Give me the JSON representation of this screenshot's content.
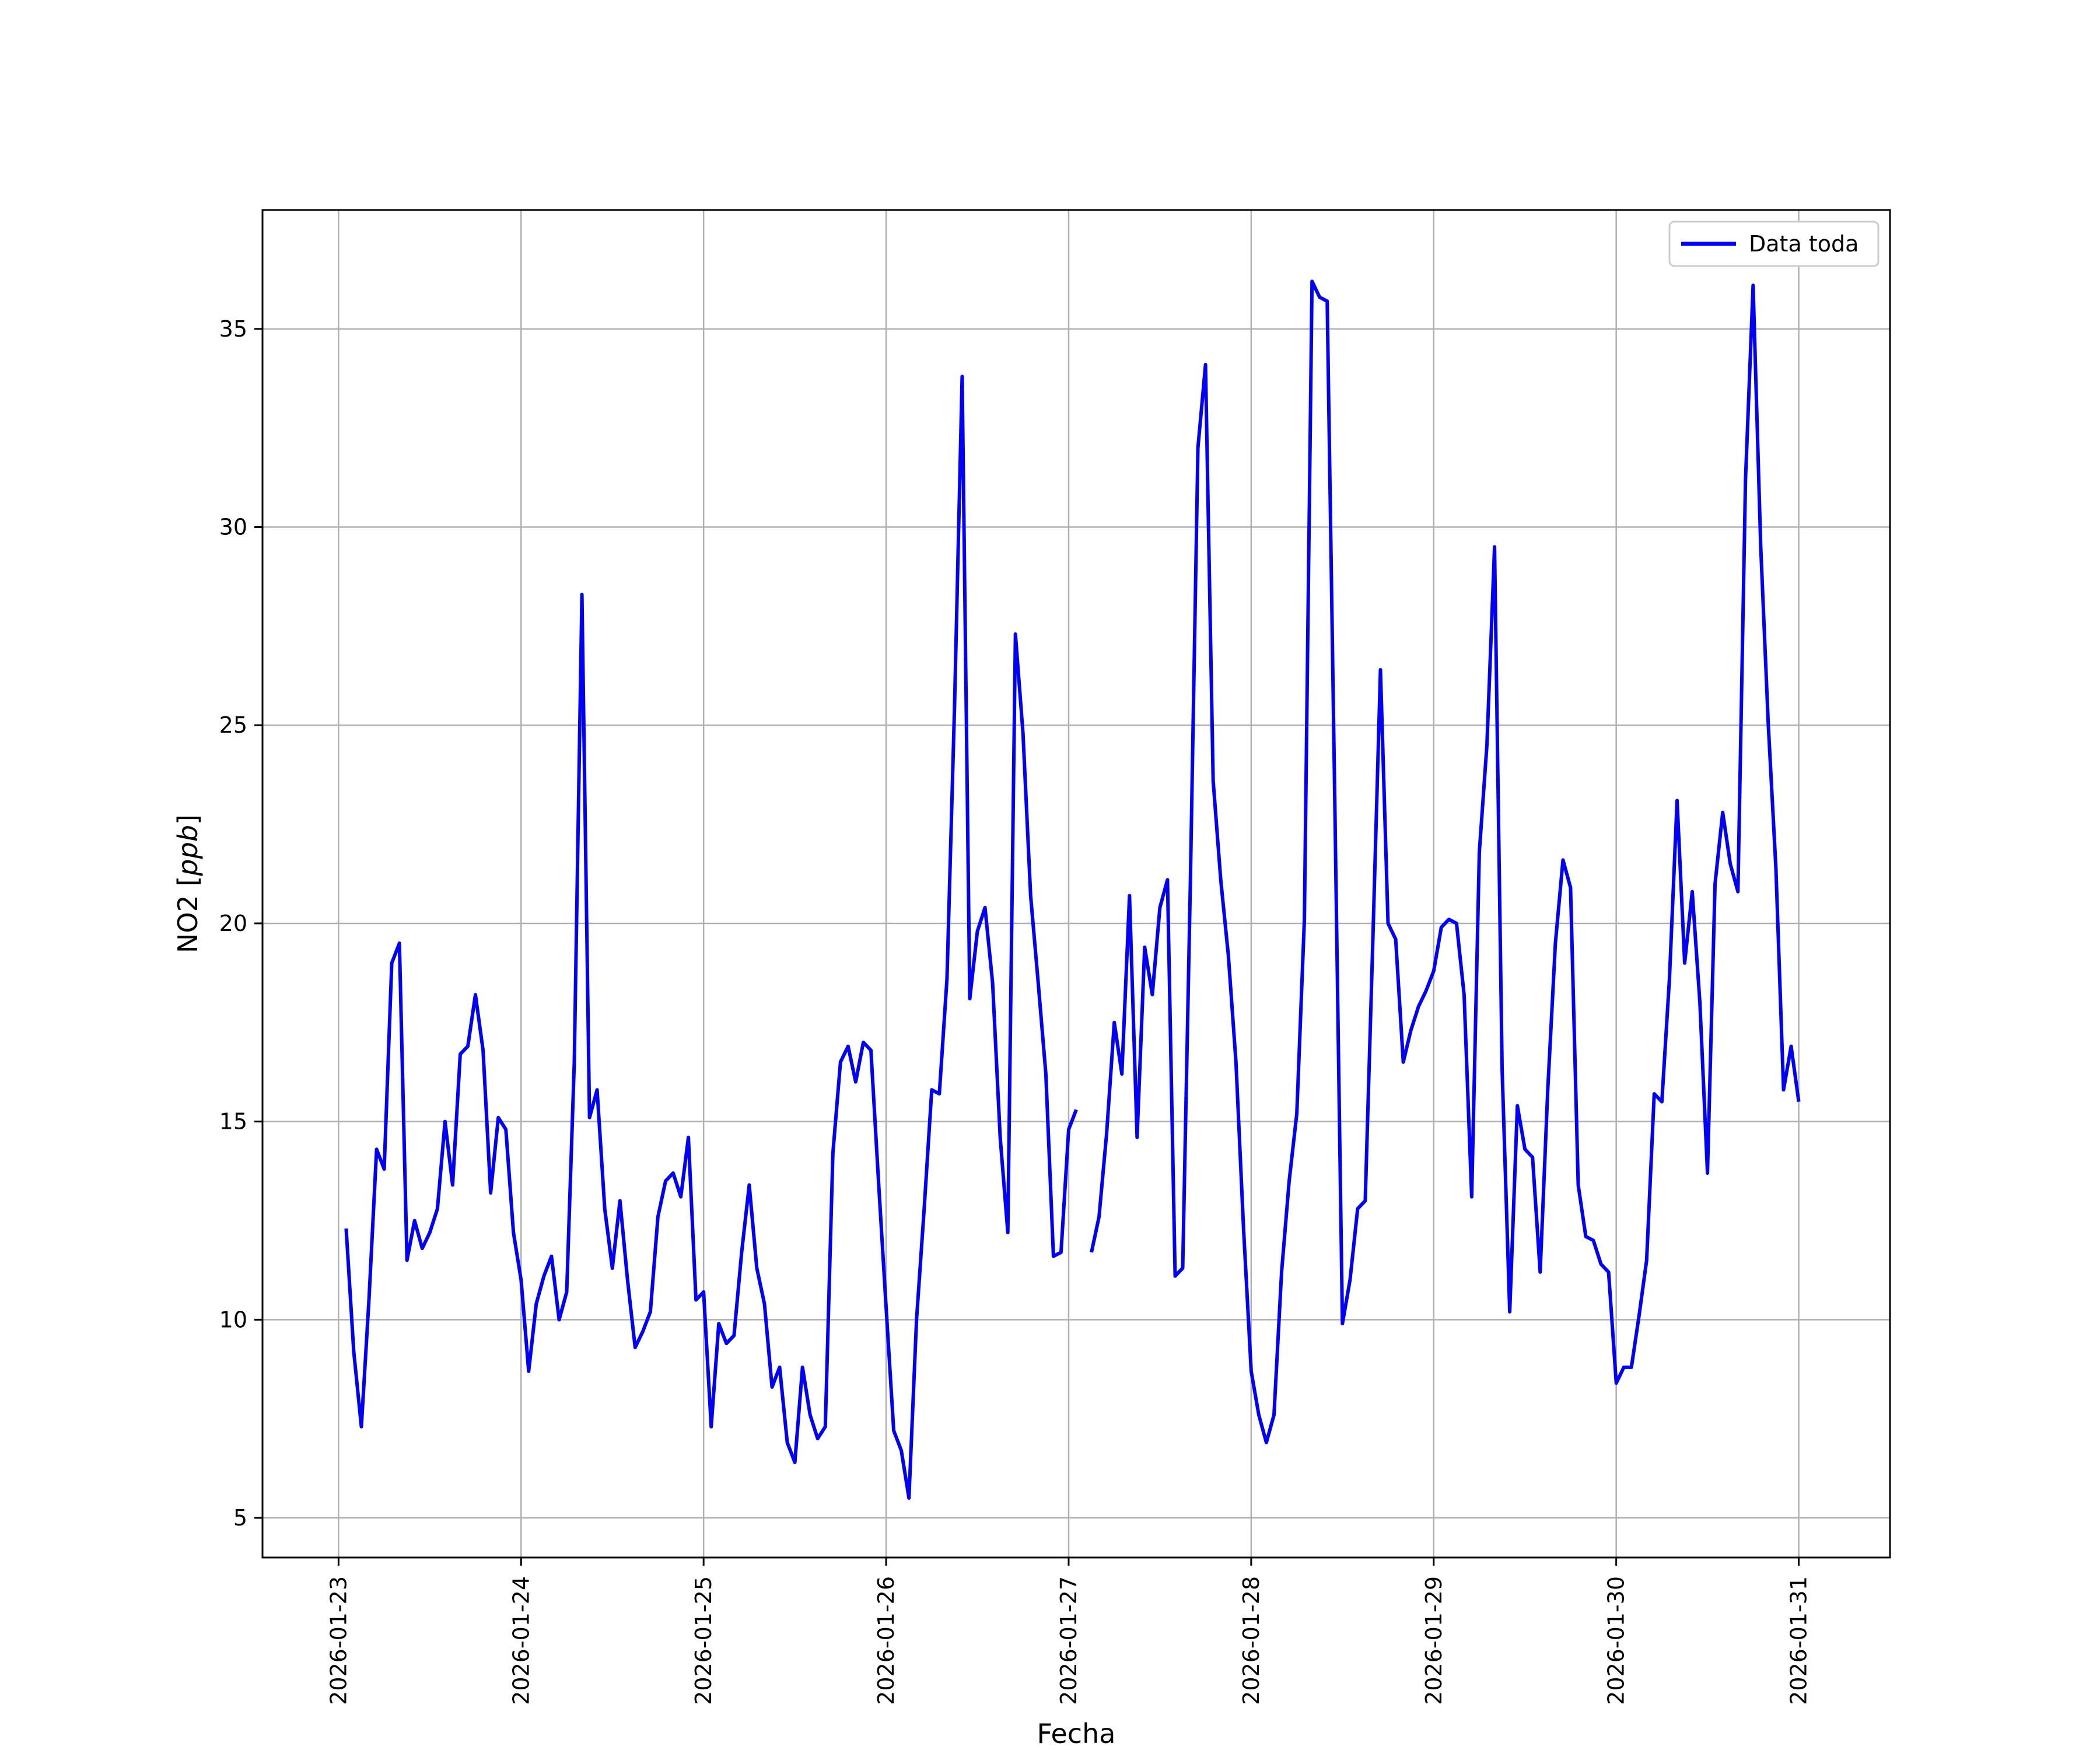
{
  "chart_data": {
    "type": "line",
    "xlabel": "Fecha",
    "ylabel_text": "NO2 [",
    "ylabel_unit": "ppb",
    "ylabel_close": "]",
    "x_start": "2026-01-23",
    "x_step_hours": 1,
    "xlim": [
      "2026-01-22 14:00",
      "2026-01-31 12:00"
    ],
    "ylim": [
      4,
      38
    ],
    "xticks": [
      "2026-01-23",
      "2026-01-24",
      "2026-01-25",
      "2026-01-26",
      "2026-01-27",
      "2026-01-28",
      "2026-01-29",
      "2026-01-30",
      "2026-01-31"
    ],
    "yticks": [
      5,
      10,
      15,
      20,
      25,
      30,
      35
    ],
    "grid": true,
    "legend_position": "top-right",
    "series": [
      {
        "name": "Data toda",
        "color": "#0000ff",
        "points": [
          [
            "2026-01-23 01:00",
            12.3
          ],
          [
            "2026-01-23 02:00",
            9.2
          ],
          [
            "2026-01-23 03:00",
            7.3
          ],
          [
            "2026-01-23 04:00",
            10.5
          ],
          [
            "2026-01-23 05:00",
            14.3
          ],
          [
            "2026-01-23 06:00",
            13.8
          ],
          [
            "2026-01-23 07:00",
            19.0
          ],
          [
            "2026-01-23 08:00",
            19.5
          ],
          [
            "2026-01-23 09:00",
            11.5
          ],
          [
            "2026-01-23 10:00",
            12.5
          ],
          [
            "2026-01-23 11:00",
            11.8
          ],
          [
            "2026-01-23 12:00",
            12.2
          ],
          [
            "2026-01-23 13:00",
            12.8
          ],
          [
            "2026-01-23 14:00",
            15.0
          ],
          [
            "2026-01-23 15:00",
            13.4
          ],
          [
            "2026-01-23 16:00",
            16.7
          ],
          [
            "2026-01-23 17:00",
            16.9
          ],
          [
            "2026-01-23 18:00",
            18.2
          ],
          [
            "2026-01-23 19:00",
            16.8
          ],
          [
            "2026-01-23 20:00",
            13.2
          ],
          [
            "2026-01-23 21:00",
            15.1
          ],
          [
            "2026-01-23 22:00",
            14.8
          ],
          [
            "2026-01-23 23:00",
            12.2
          ],
          [
            "2026-01-24 00:00",
            11.0
          ],
          [
            "2026-01-24 01:00",
            8.7
          ],
          [
            "2026-01-24 02:00",
            10.4
          ],
          [
            "2026-01-24 03:00",
            11.1
          ],
          [
            "2026-01-24 04:00",
            11.6
          ],
          [
            "2026-01-24 05:00",
            10.0
          ],
          [
            "2026-01-24 06:00",
            10.7
          ],
          [
            "2026-01-24 07:00",
            16.5
          ],
          [
            "2026-01-24 08:00",
            28.3
          ],
          [
            "2026-01-24 09:00",
            15.1
          ],
          [
            "2026-01-24 10:00",
            15.8
          ],
          [
            "2026-01-24 11:00",
            12.8
          ],
          [
            "2026-01-24 12:00",
            11.3
          ],
          [
            "2026-01-24 13:00",
            13.0
          ],
          [
            "2026-01-24 14:00",
            11.0
          ],
          [
            "2026-01-24 15:00",
            9.3
          ],
          [
            "2026-01-24 16:00",
            9.7
          ],
          [
            "2026-01-24 17:00",
            10.2
          ],
          [
            "2026-01-24 18:00",
            12.6
          ],
          [
            "2026-01-24 19:00",
            13.5
          ],
          [
            "2026-01-24 20:00",
            13.7
          ],
          [
            "2026-01-24 21:00",
            13.1
          ],
          [
            "2026-01-24 22:00",
            14.6
          ],
          [
            "2026-01-24 23:00",
            10.5
          ],
          [
            "2026-01-25 00:00",
            10.7
          ],
          [
            "2026-01-25 01:00",
            7.3
          ],
          [
            "2026-01-25 02:00",
            9.9
          ],
          [
            "2026-01-25 03:00",
            9.4
          ],
          [
            "2026-01-25 04:00",
            9.6
          ],
          [
            "2026-01-25 05:00",
            11.7
          ],
          [
            "2026-01-25 06:00",
            13.4
          ],
          [
            "2026-01-25 07:00",
            11.3
          ],
          [
            "2026-01-25 08:00",
            10.4
          ],
          [
            "2026-01-25 09:00",
            8.3
          ],
          [
            "2026-01-25 10:00",
            8.8
          ],
          [
            "2026-01-25 11:00",
            6.9
          ],
          [
            "2026-01-25 12:00",
            6.4
          ],
          [
            "2026-01-25 13:00",
            8.8
          ],
          [
            "2026-01-25 14:00",
            7.6
          ],
          [
            "2026-01-25 15:00",
            7.0
          ],
          [
            "2026-01-25 16:00",
            7.3
          ],
          [
            "2026-01-25 17:00",
            14.2
          ],
          [
            "2026-01-25 18:00",
            16.5
          ],
          [
            "2026-01-25 19:00",
            16.9
          ],
          [
            "2026-01-25 20:00",
            16.0
          ],
          [
            "2026-01-25 21:00",
            17.0
          ],
          [
            "2026-01-25 22:00",
            16.8
          ],
          [
            "2026-01-25 23:00",
            13.5
          ],
          [
            "2026-01-26 00:00",
            10.3
          ],
          [
            "2026-01-26 01:00",
            7.2
          ],
          [
            "2026-01-26 02:00",
            6.7
          ],
          [
            "2026-01-26 03:00",
            5.5
          ],
          [
            "2026-01-26 04:00",
            10.0
          ],
          [
            "2026-01-26 05:00",
            12.8
          ],
          [
            "2026-01-26 06:00",
            15.8
          ],
          [
            "2026-01-26 07:00",
            15.7
          ],
          [
            "2026-01-26 08:00",
            18.6
          ],
          [
            "2026-01-26 09:00",
            25.5
          ],
          [
            "2026-01-26 10:00",
            33.8
          ],
          [
            "2026-01-26 11:00",
            18.1
          ],
          [
            "2026-01-26 12:00",
            19.8
          ],
          [
            "2026-01-26 13:00",
            20.4
          ],
          [
            "2026-01-26 14:00",
            18.5
          ],
          [
            "2026-01-26 15:00",
            14.6
          ],
          [
            "2026-01-26 16:00",
            12.2
          ],
          [
            "2026-01-26 17:00",
            27.3
          ],
          [
            "2026-01-26 18:00",
            24.8
          ],
          [
            "2026-01-26 19:00",
            20.7
          ],
          [
            "2026-01-26 20:00",
            18.5
          ],
          [
            "2026-01-26 21:00",
            16.2
          ],
          [
            "2026-01-26 22:00",
            11.6
          ],
          [
            "2026-01-26 23:00",
            11.7
          ],
          [
            "2026-01-27 00:00",
            14.8
          ],
          [
            "2026-01-27 01:00",
            15.3
          ],
          [
            "2026-01-27 02:00",
            null
          ],
          [
            "2026-01-27 03:00",
            11.7
          ],
          [
            "2026-01-27 04:00",
            12.6
          ],
          [
            "2026-01-27 05:00",
            14.7
          ],
          [
            "2026-01-27 06:00",
            17.5
          ],
          [
            "2026-01-27 07:00",
            16.2
          ],
          [
            "2026-01-27 08:00",
            20.7
          ],
          [
            "2026-01-27 09:00",
            14.6
          ],
          [
            "2026-01-27 10:00",
            19.4
          ],
          [
            "2026-01-27 11:00",
            18.2
          ],
          [
            "2026-01-27 12:00",
            20.4
          ],
          [
            "2026-01-27 13:00",
            21.1
          ],
          [
            "2026-01-27 14:00",
            11.1
          ],
          [
            "2026-01-27 15:00",
            11.3
          ],
          [
            "2026-01-27 16:00",
            21.0
          ],
          [
            "2026-01-27 17:00",
            32.0
          ],
          [
            "2026-01-27 18:00",
            34.1
          ],
          [
            "2026-01-27 19:00",
            23.6
          ],
          [
            "2026-01-27 20:00",
            21.1
          ],
          [
            "2026-01-27 21:00",
            19.2
          ],
          [
            "2026-01-27 22:00",
            16.5
          ],
          [
            "2026-01-27 23:00",
            12.3
          ],
          [
            "2026-01-28 00:00",
            8.7
          ],
          [
            "2026-01-28 01:00",
            7.6
          ],
          [
            "2026-01-28 02:00",
            6.9
          ],
          [
            "2026-01-28 03:00",
            7.6
          ],
          [
            "2026-01-28 04:00",
            11.2
          ],
          [
            "2026-01-28 05:00",
            13.5
          ],
          [
            "2026-01-28 06:00",
            15.2
          ],
          [
            "2026-01-28 07:00",
            20.1
          ],
          [
            "2026-01-28 08:00",
            36.2
          ],
          [
            "2026-01-28 09:00",
            35.8
          ],
          [
            "2026-01-28 10:00",
            35.7
          ],
          [
            "2026-01-28 11:00",
            23.0
          ],
          [
            "2026-01-28 12:00",
            9.9
          ],
          [
            "2026-01-28 13:00",
            11.0
          ],
          [
            "2026-01-28 14:00",
            12.8
          ],
          [
            "2026-01-28 15:00",
            13.0
          ],
          [
            "2026-01-28 16:00",
            19.6
          ],
          [
            "2026-01-28 17:00",
            26.4
          ],
          [
            "2026-01-28 18:00",
            20.0
          ],
          [
            "2026-01-28 19:00",
            19.6
          ],
          [
            "2026-01-28 20:00",
            16.5
          ],
          [
            "2026-01-28 21:00",
            17.3
          ],
          [
            "2026-01-28 22:00",
            17.9
          ],
          [
            "2026-01-28 23:00",
            18.3
          ],
          [
            "2026-01-29 00:00",
            18.8
          ],
          [
            "2026-01-29 01:00",
            19.9
          ],
          [
            "2026-01-29 02:00",
            20.1
          ],
          [
            "2026-01-29 03:00",
            20.0
          ],
          [
            "2026-01-29 04:00",
            18.2
          ],
          [
            "2026-01-29 05:00",
            13.1
          ],
          [
            "2026-01-29 06:00",
            21.8
          ],
          [
            "2026-01-29 07:00",
            24.5
          ],
          [
            "2026-01-29 08:00",
            29.5
          ],
          [
            "2026-01-29 09:00",
            16.3
          ],
          [
            "2026-01-29 10:00",
            10.2
          ],
          [
            "2026-01-29 11:00",
            15.4
          ],
          [
            "2026-01-29 12:00",
            14.3
          ],
          [
            "2026-01-29 13:00",
            14.1
          ],
          [
            "2026-01-29 14:00",
            11.2
          ],
          [
            "2026-01-29 15:00",
            15.8
          ],
          [
            "2026-01-29 16:00",
            19.5
          ],
          [
            "2026-01-29 17:00",
            21.6
          ],
          [
            "2026-01-29 18:00",
            20.9
          ],
          [
            "2026-01-29 19:00",
            13.4
          ],
          [
            "2026-01-29 20:00",
            12.1
          ],
          [
            "2026-01-29 21:00",
            12.0
          ],
          [
            "2026-01-29 22:00",
            11.4
          ],
          [
            "2026-01-29 23:00",
            11.2
          ],
          [
            "2026-01-30 00:00",
            8.4
          ],
          [
            "2026-01-30 01:00",
            8.8
          ],
          [
            "2026-01-30 02:00",
            8.8
          ],
          [
            "2026-01-30 03:00",
            10.1
          ],
          [
            "2026-01-30 04:00",
            11.5
          ],
          [
            "2026-01-30 05:00",
            15.7
          ],
          [
            "2026-01-30 06:00",
            15.5
          ],
          [
            "2026-01-30 07:00",
            18.6
          ],
          [
            "2026-01-30 08:00",
            23.1
          ],
          [
            "2026-01-30 09:00",
            19.0
          ],
          [
            "2026-01-30 10:00",
            20.8
          ],
          [
            "2026-01-30 11:00",
            18.0
          ],
          [
            "2026-01-30 12:00",
            13.7
          ],
          [
            "2026-01-30 13:00",
            21.0
          ],
          [
            "2026-01-30 14:00",
            22.8
          ],
          [
            "2026-01-30 15:00",
            21.5
          ],
          [
            "2026-01-30 16:00",
            20.8
          ],
          [
            "2026-01-30 17:00",
            31.2
          ],
          [
            "2026-01-30 18:00",
            36.1
          ],
          [
            "2026-01-30 19:00",
            29.5
          ],
          [
            "2026-01-30 20:00",
            25.0
          ],
          [
            "2026-01-30 21:00",
            21.4
          ],
          [
            "2026-01-30 22:00",
            15.8
          ],
          [
            "2026-01-30 23:00",
            16.9
          ],
          [
            "2026-01-31 00:00",
            15.5
          ]
        ]
      }
    ]
  }
}
